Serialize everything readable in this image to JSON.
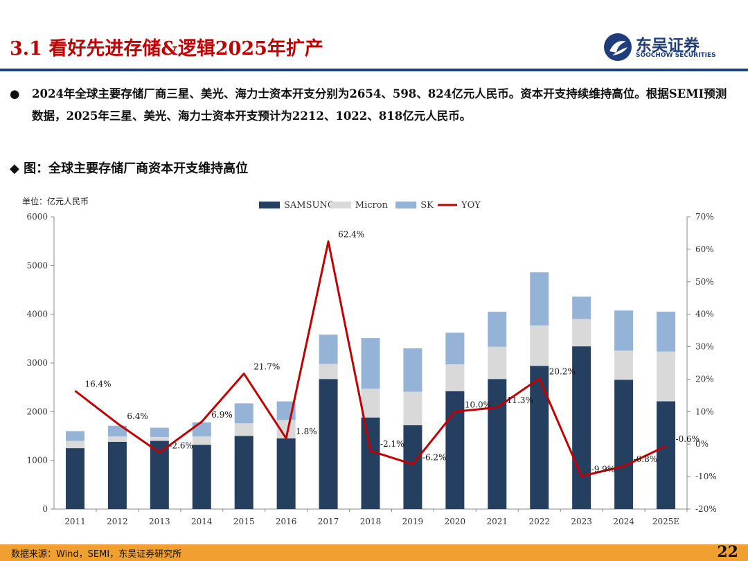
{
  "header": {
    "title": "3.1 看好先进存储&逻辑2025年扩产",
    "logo_cn": "东吴证券",
    "logo_en": "SOOCHOW SECURITIES"
  },
  "summary": {
    "bullet": "●",
    "text": "2024年全球主要存储厂商三星、美光、海力士资本开支分别为2654、598、824亿元人民币。资本开支持续维持高位。根据SEMI预测数据，2025年三星、美光、海力士资本开支预计为2212、1022、818亿元人民币。"
  },
  "figure": {
    "caption": "◆ 图：全球主要存储厂商资本开支维持高位"
  },
  "footer": {
    "source": "数据来源：Wind，SEMI，东吴证券研究所",
    "page_number": "22"
  },
  "colors": {
    "samsung": "#243f60",
    "micron": "#d9d9d9",
    "sk": "#95b3d7",
    "yoy": "#c00000",
    "accent": "#1f3d7a",
    "footer": "#f0a030"
  },
  "chart_data": {
    "type": "bar",
    "stacked": true,
    "unit_label": "单位：亿元人民币",
    "categories": [
      "2011",
      "2012",
      "2013",
      "2014",
      "2015",
      "2016",
      "2017",
      "2018",
      "2019",
      "2020",
      "2021",
      "2022",
      "2023",
      "2024",
      "2025E"
    ],
    "series": [
      {
        "name": "SAMSUNG",
        "values": [
          1250,
          1380,
          1400,
          1320,
          1500,
          1450,
          2670,
          1880,
          1720,
          2420,
          2670,
          2940,
          3340,
          2654,
          2212
        ]
      },
      {
        "name": "Micron",
        "values": [
          150,
          110,
          80,
          170,
          260,
          380,
          310,
          590,
          690,
          550,
          660,
          830,
          560,
          598,
          1022
        ]
      },
      {
        "name": "SK",
        "values": [
          200,
          220,
          190,
          290,
          410,
          380,
          600,
          1040,
          890,
          650,
          720,
          1090,
          460,
          824,
          818
        ]
      }
    ],
    "line": {
      "name": "YOY",
      "values": [
        16.4,
        6.4,
        -2.6,
        6.9,
        21.7,
        1.8,
        62.4,
        -2.1,
        -6.2,
        10.0,
        11.3,
        20.2,
        -9.9,
        -6.8,
        -0.6
      ],
      "labels": [
        "16.4%",
        "6.4%",
        "-2.6%",
        "6.9%",
        "21.7%",
        "1.8%",
        "62.4%",
        "-2.1%",
        "-6.2%",
        "10.0%",
        "11.3%",
        "20.2%",
        "-9.9%",
        "-6.8%",
        "-0.6%"
      ]
    },
    "y_left": {
      "min": 0,
      "max": 6000,
      "ticks": [
        "0",
        "1000",
        "2000",
        "3000",
        "4000",
        "5000",
        "6000"
      ]
    },
    "y_right": {
      "min": -20,
      "max": 70,
      "ticks": [
        "-20%",
        "-10%",
        "0%",
        "10%",
        "20%",
        "30%",
        "40%",
        "50%",
        "60%",
        "70%"
      ]
    },
    "legend": [
      "SAMSUNG",
      "Micron",
      "SK",
      "YOY"
    ],
    "legend_position": "top"
  }
}
